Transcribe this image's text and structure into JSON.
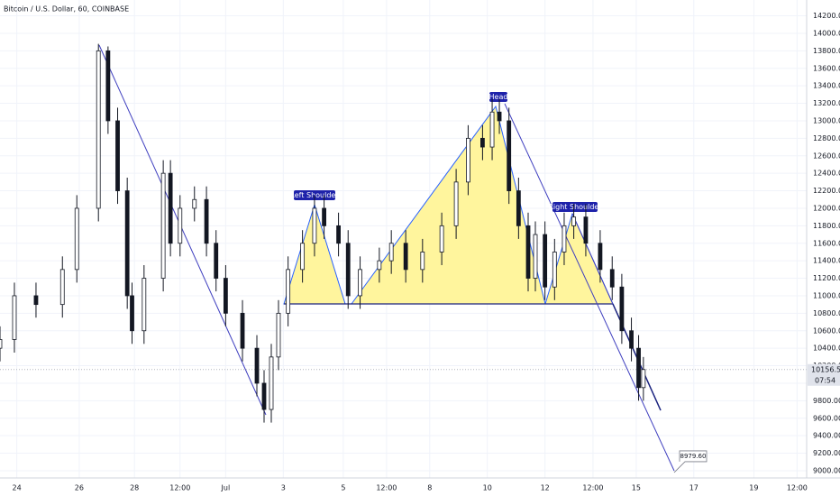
{
  "chart_data": {
    "type": "candlestick",
    "title": "Bitcoin / U.S. Dollar, 60, COINBASE",
    "x": [
      0,
      6,
      15,
      26,
      32,
      41,
      45,
      49,
      53,
      55,
      60,
      68,
      71,
      75,
      81,
      86,
      90,
      94,
      101,
      107,
      110,
      113,
      116,
      120,
      126,
      131,
      135,
      141,
      145,
      150,
      158,
      163,
      169,
      176,
      184,
      190,
      195,
      201,
      205,
      208,
      212,
      216,
      220,
      223,
      227,
      231,
      235,
      239,
      244,
      250,
      255,
      259,
      263,
      266,
      268
    ],
    "open": [
      10400,
      10500,
      11000,
      10900,
      11300,
      12000,
      13800,
      13000,
      12200,
      11000,
      10600,
      11200,
      12400,
      11600,
      12000,
      12100,
      11600,
      11200,
      10800,
      10400,
      10000,
      9700,
      10300,
      10800,
      11300,
      11600,
      12000,
      11800,
      11600,
      11000,
      11300,
      11400,
      11600,
      11300,
      11500,
      11800,
      12300,
      12800,
      12700,
      13100,
      13000,
      12200,
      11800,
      11200,
      11700,
      11100,
      11500,
      11800,
      11900,
      11600,
      11300,
      11100,
      10600,
      10400,
      9950
    ],
    "high": [
      10650,
      11150,
      11150,
      11450,
      12150,
      13880,
      13850,
      13150,
      12350,
      11150,
      11350,
      12550,
      12550,
      12150,
      12250,
      12250,
      11750,
      11350,
      10950,
      10550,
      10150,
      10450,
      10950,
      11450,
      11750,
      12150,
      12150,
      11950,
      11750,
      11450,
      11550,
      11750,
      11750,
      11650,
      11950,
      12450,
      12950,
      12950,
      13250,
      13250,
      13150,
      12350,
      11950,
      11850,
      11850,
      11650,
      11950,
      12050,
      12050,
      11750,
      11450,
      11250,
      10750,
      10550,
      10300
    ],
    "low": [
      10250,
      10350,
      10750,
      10750,
      11150,
      11850,
      12850,
      12050,
      10850,
      10450,
      10450,
      11050,
      11450,
      11450,
      11850,
      11450,
      11050,
      10650,
      10250,
      9850,
      9550,
      9550,
      10150,
      10650,
      11150,
      11450,
      11650,
      11450,
      10850,
      10850,
      11150,
      11250,
      11150,
      11150,
      11350,
      11650,
      12150,
      12550,
      12550,
      12850,
      12050,
      11650,
      11050,
      11050,
      10950,
      10950,
      11350,
      11650,
      11450,
      11150,
      10950,
      10450,
      10250,
      9800,
      9800
    ],
    "close": [
      10500,
      11000,
      10900,
      11300,
      12000,
      13800,
      13000,
      12200,
      11000,
      10600,
      11200,
      12400,
      11600,
      12000,
      12100,
      11600,
      11200,
      10800,
      10400,
      10000,
      9700,
      10300,
      10800,
      11300,
      11600,
      12000,
      11800,
      11600,
      11000,
      11300,
      11400,
      11600,
      11300,
      11500,
      11800,
      12300,
      12800,
      12700,
      13100,
      13000,
      12200,
      11800,
      11200,
      11700,
      11100,
      11500,
      11800,
      11900,
      11600,
      11300,
      11100,
      10600,
      10400,
      9950,
      10156.5
    ],
    "up_color": "#ffffff",
    "down_color": "#131722",
    "wick_color": "#131722",
    "xlim": [
      0,
      336
    ],
    "xticks": [
      {
        "value": 7,
        "label": "24"
      },
      {
        "value": 33,
        "label": "26"
      },
      {
        "value": 56,
        "label": "28"
      },
      {
        "value": 75,
        "label": "12:00"
      },
      {
        "value": 94,
        "label": "Jul"
      },
      {
        "value": 118,
        "label": "3"
      },
      {
        "value": 143,
        "label": "5"
      },
      {
        "value": 161,
        "label": "12:00"
      },
      {
        "value": 179,
        "label": "8"
      },
      {
        "value": 203,
        "label": "10"
      },
      {
        "value": 227,
        "label": "12"
      },
      {
        "value": 247,
        "label": "12:00"
      },
      {
        "value": 265,
        "label": "15"
      },
      {
        "value": 289,
        "label": "17"
      },
      {
        "value": 314,
        "label": "19"
      },
      {
        "value": 332,
        "label": "12:00"
      }
    ],
    "ylim": [
      8917,
      14381
    ],
    "yticks": [
      {
        "value": 9000,
        "label": "9000.00"
      },
      {
        "value": 9200,
        "label": "9200.00"
      },
      {
        "value": 9400,
        "label": "9400.00"
      },
      {
        "value": 9600,
        "label": "9600.00"
      },
      {
        "value": 9800,
        "label": "9800.00"
      },
      {
        "value": 10000,
        "label": "10000.00"
      },
      {
        "value": 10200,
        "label": "10200.00"
      },
      {
        "value": 10400,
        "label": "10400.00"
      },
      {
        "value": 10600,
        "label": "10600.00"
      },
      {
        "value": 10800,
        "label": "10800.00"
      },
      {
        "value": 11000,
        "label": "11000.00"
      },
      {
        "value": 11200,
        "label": "11200.00"
      },
      {
        "value": 11400,
        "label": "11400.00"
      },
      {
        "value": 11600,
        "label": "11600.00"
      },
      {
        "value": 11800,
        "label": "11800.00"
      },
      {
        "value": 12000,
        "label": "12000.00"
      },
      {
        "value": 12200,
        "label": "12200.00"
      },
      {
        "value": 12400,
        "label": "12400.00"
      },
      {
        "value": 12600,
        "label": "12600.00"
      },
      {
        "value": 12800,
        "label": "12800.00"
      },
      {
        "value": 13000,
        "label": "13000.00"
      },
      {
        "value": 13200,
        "label": "13200.00"
      },
      {
        "value": 13400,
        "label": "13400.00"
      },
      {
        "value": 13600,
        "label": "13600.00"
      },
      {
        "value": 13800,
        "label": "13800.00"
      },
      {
        "value": 14000,
        "label": "14000.00"
      },
      {
        "value": 14200,
        "label": "14200.00"
      }
    ],
    "grid": true,
    "last_price": {
      "value": 10156.5,
      "label": "10156.50"
    },
    "countdown": "07:54",
    "target": {
      "value": 8979.6,
      "label": "8979.60"
    },
    "annotations": [
      "Left Shoulder",
      "Head",
      "Right Shoulder"
    ]
  }
}
